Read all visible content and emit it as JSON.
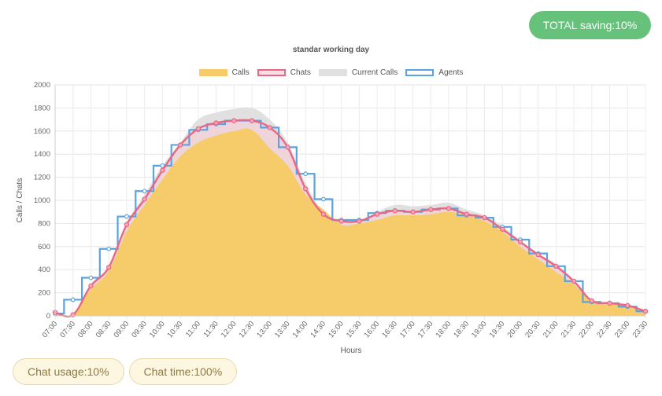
{
  "badge": {
    "saving": "TOTAL saving:10%"
  },
  "buttons": {
    "chat_usage": "Chat usage:10%",
    "chat_time": "Chat time:100%"
  },
  "colors": {
    "calls": "#f6cc6a",
    "chats": "#e96783",
    "current_calls": "#e0e0e0",
    "agents": "#5aa3e0",
    "badge": "#66c17a"
  },
  "chart_data": {
    "type": "area",
    "title": "standar working day",
    "xlabel": "Hours",
    "ylabel": "Calls / Chats",
    "ylim": [
      0,
      2000
    ],
    "yticks": [
      0,
      200,
      400,
      600,
      800,
      1000,
      1200,
      1400,
      1600,
      1800,
      2000
    ],
    "grid": true,
    "legend_position": "top",
    "categories": [
      "07:00",
      "07:30",
      "08:00",
      "08:30",
      "09:00",
      "09:30",
      "10:00",
      "10:30",
      "11:00",
      "11:30",
      "12:00",
      "12:30",
      "13:00",
      "13:30",
      "14:00",
      "14:30",
      "15:00",
      "15:30",
      "16:00",
      "16:30",
      "17:00",
      "17:30",
      "18:00",
      "18:30",
      "19:00",
      "19:30",
      "20:00",
      "20:30",
      "21:00",
      "21:30",
      "22:00",
      "22:30",
      "23:00",
      "23:30"
    ],
    "series": [
      {
        "name": "Calls",
        "style": "filled-area",
        "values": [
          30,
          10,
          230,
          390,
          730,
          960,
          1180,
          1380,
          1500,
          1560,
          1600,
          1610,
          1450,
          1300,
          1050,
          920,
          790,
          800,
          830,
          870,
          870,
          880,
          900,
          870,
          820,
          730,
          600,
          490,
          380,
          270,
          130,
          110,
          80,
          30
        ]
      },
      {
        "name": "Chats",
        "style": "smooth-line-with-points",
        "values": [
          30,
          10,
          260,
          420,
          790,
          1010,
          1260,
          1480,
          1620,
          1670,
          1690,
          1690,
          1630,
          1460,
          1100,
          880,
          820,
          820,
          880,
          910,
          900,
          920,
          930,
          880,
          850,
          750,
          640,
          530,
          430,
          300,
          130,
          110,
          90,
          40
        ]
      },
      {
        "name": "Current Calls",
        "style": "filled-area",
        "values": [
          30,
          10,
          270,
          430,
          800,
          1050,
          1300,
          1500,
          1700,
          1760,
          1790,
          1800,
          1700,
          1500,
          1150,
          900,
          830,
          830,
          900,
          960,
          950,
          960,
          980,
          920,
          870,
          780,
          650,
          540,
          450,
          310,
          130,
          110,
          90,
          40
        ]
      },
      {
        "name": "Agents",
        "style": "step-line",
        "values": [
          20,
          140,
          330,
          580,
          860,
          1080,
          1300,
          1480,
          1610,
          1660,
          1690,
          1690,
          1630,
          1460,
          1230,
          1010,
          830,
          830,
          890,
          910,
          900,
          920,
          930,
          870,
          850,
          770,
          660,
          540,
          430,
          300,
          120,
          110,
          80,
          40
        ]
      }
    ]
  }
}
